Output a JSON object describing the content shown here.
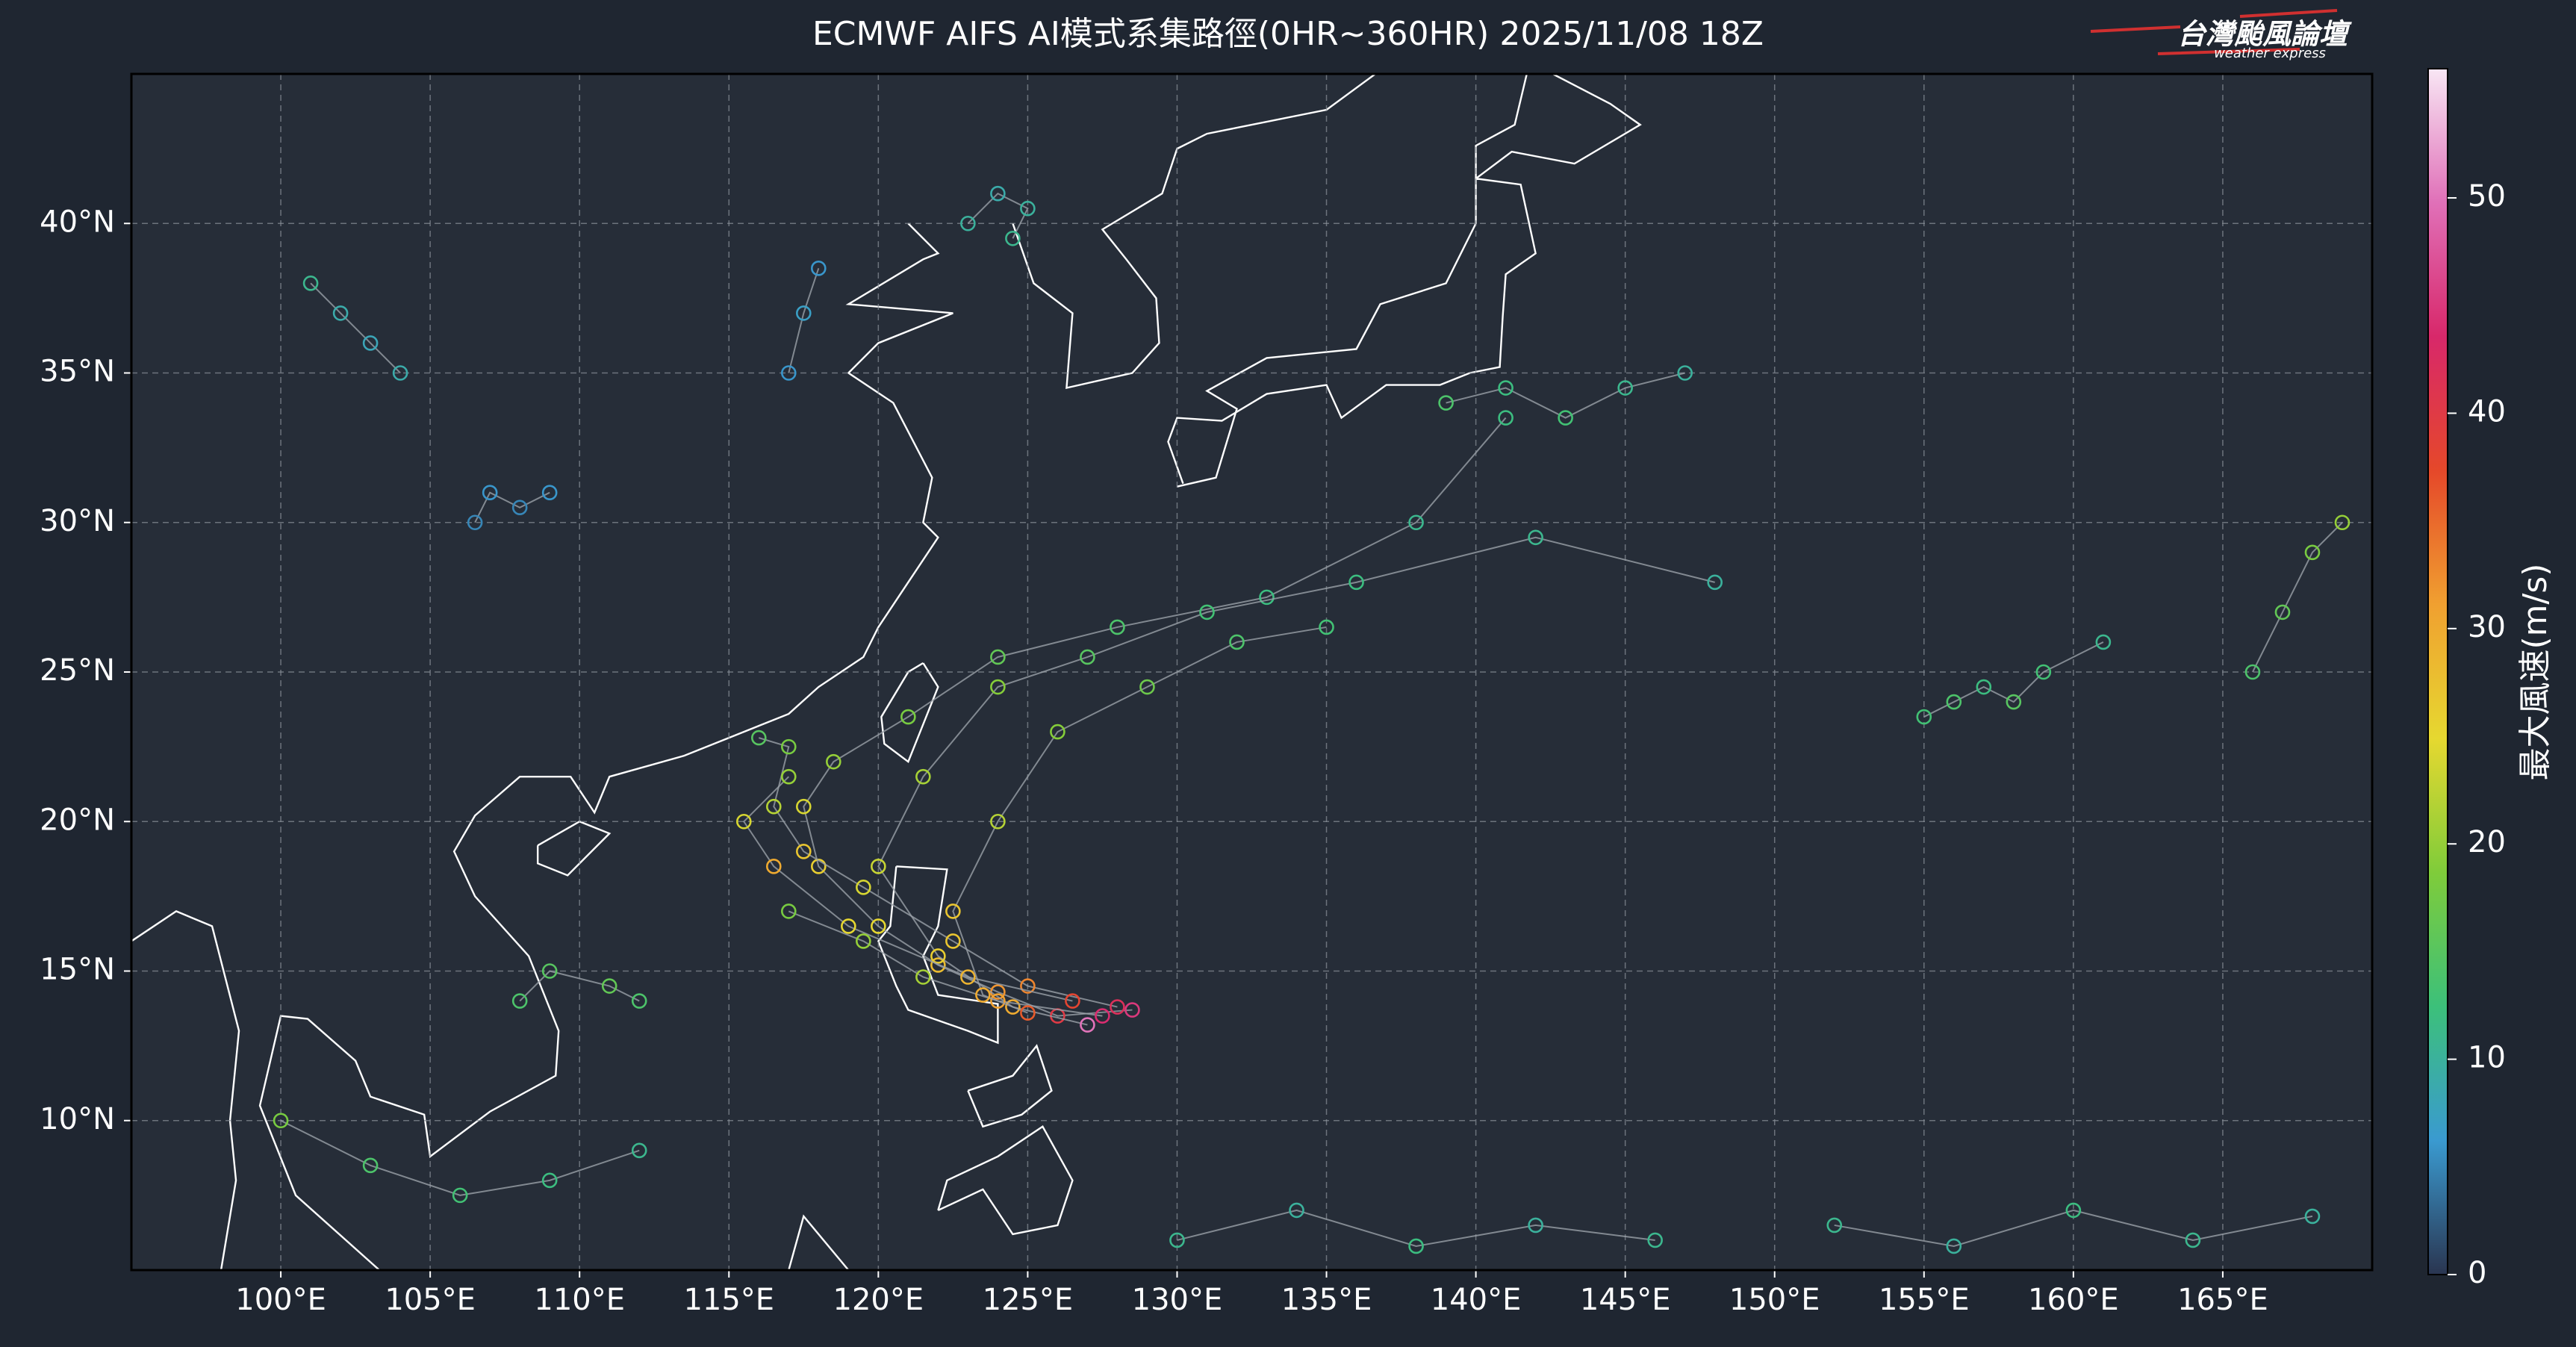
{
  "chart_data": {
    "type": "tracks",
    "title": "ECMWF AIFS AI模式系集路徑(0HR~360HR) 2025/11/08 18Z",
    "logo": {
      "name": "台灣颱風論壇",
      "subtitle": "weather express"
    },
    "colorbar_label": "最大風速(m/s)",
    "xlim": [
      95,
      170
    ],
    "ylim": [
      5,
      45
    ],
    "clim": [
      0,
      56
    ],
    "colors": [
      "#2a3550",
      "#3a9ad0",
      "#3cc07a",
      "#7fcc3a",
      "#e6d830",
      "#f0a030",
      "#e5482a",
      "#d8286a",
      "#e070b8",
      "#f8e6f4"
    ],
    "grid": true,
    "xticks": [
      {
        "value": 100,
        "label": "100°E"
      },
      {
        "value": 105,
        "label": "105°E"
      },
      {
        "value": 110,
        "label": "110°E"
      },
      {
        "value": 115,
        "label": "115°E"
      },
      {
        "value": 120,
        "label": "120°E"
      },
      {
        "value": 125,
        "label": "125°E"
      },
      {
        "value": 130,
        "label": "130°E"
      },
      {
        "value": 135,
        "label": "135°E"
      },
      {
        "value": 140,
        "label": "140°E"
      },
      {
        "value": 145,
        "label": "145°E"
      },
      {
        "value": 150,
        "label": "150°E"
      },
      {
        "value": 155,
        "label": "155°E"
      },
      {
        "value": 160,
        "label": "160°E"
      },
      {
        "value": 165,
        "label": "165°E"
      }
    ],
    "yticks": [
      {
        "value": 10,
        "label": "10°N"
      },
      {
        "value": 15,
        "label": "15°N"
      },
      {
        "value": 20,
        "label": "20°N"
      },
      {
        "value": 25,
        "label": "25°N"
      },
      {
        "value": 30,
        "label": "30°N"
      },
      {
        "value": 35,
        "label": "35°N"
      },
      {
        "value": 40,
        "label": "40°N"
      }
    ],
    "cticks": [
      0,
      10,
      20,
      30,
      40,
      50
    ],
    "tracks": [
      {
        "x": [
          128.5,
          126,
          124,
          122,
          120,
          118,
          117.5,
          118.5,
          121,
          124,
          128,
          133,
          138,
          141
        ],
        "y": [
          13.7,
          13.5,
          14.3,
          15.2,
          16.5,
          18.5,
          20.5,
          22,
          23.5,
          25.5,
          26.5,
          27.5,
          30,
          33.5
        ],
        "values": [
          45,
          40,
          32,
          28,
          25,
          26,
          24,
          20,
          18,
          16,
          14,
          12,
          11,
          12
        ]
      },
      {
        "x": [
          128,
          125,
          122.5,
          119.5,
          117.5,
          116.5,
          117,
          116
        ],
        "y": [
          13.8,
          14.5,
          16,
          17.8,
          19,
          20.5,
          22.5,
          22.8
        ],
        "values": [
          42,
          33,
          27,
          24,
          27,
          22,
          18,
          15
        ]
      },
      {
        "x": [
          127,
          124.5,
          122,
          120,
          121.5,
          124,
          127,
          131,
          136,
          142,
          148
        ],
        "y": [
          13.2,
          13.8,
          15.5,
          18.5,
          21.5,
          24.5,
          25.5,
          27,
          28,
          29.5,
          28
        ],
        "values": [
          50,
          30,
          26,
          23,
          21,
          19,
          15,
          13,
          12,
          11,
          10
        ]
      },
      {
        "x": [
          126.5,
          123,
          119,
          116.5,
          115.5,
          117
        ],
        "y": [
          14,
          14.8,
          16.5,
          18.5,
          20,
          21.5
        ],
        "values": [
          38,
          29,
          25,
          30,
          24,
          20
        ]
      },
      {
        "x": [
          127.5,
          124,
          121.5,
          119.5,
          117
        ],
        "y": [
          13.5,
          14,
          14.8,
          16,
          17
        ],
        "values": [
          44,
          31,
          21,
          20,
          18
        ]
      },
      {
        "x": [
          125,
          123.5,
          122.5,
          124,
          126,
          129,
          132,
          135
        ],
        "y": [
          13.6,
          14.2,
          17,
          20,
          23,
          24.5,
          26,
          26.5
        ],
        "values": [
          36,
          30,
          27,
          22,
          19,
          17,
          14,
          13
        ]
      },
      {
        "x": [
          139,
          141,
          143,
          145,
          147
        ],
        "y": [
          34,
          34.5,
          33.5,
          34.5,
          35
        ],
        "values": [
          14,
          12,
          13,
          11,
          10
        ]
      },
      {
        "x": [
          155,
          156,
          157,
          158,
          159,
          161
        ],
        "y": [
          23.5,
          24,
          24.5,
          24,
          25,
          26
        ],
        "values": [
          13,
          14,
          12,
          15,
          13,
          11
        ]
      },
      {
        "x": [
          166,
          167,
          168,
          169
        ],
        "y": [
          25,
          27,
          29,
          30
        ],
        "values": [
          14,
          16,
          18,
          20
        ]
      },
      {
        "x": [
          123,
          124,
          125,
          124.5
        ],
        "y": [
          40,
          41,
          40.5,
          39.5
        ],
        "values": [
          10,
          9,
          10,
          11
        ]
      },
      {
        "x": [
          101,
          102,
          103,
          104
        ],
        "y": [
          38,
          37,
          36,
          35
        ],
        "values": [
          11,
          9,
          8,
          9
        ]
      },
      {
        "x": [
          106.5,
          107,
          108,
          109
        ],
        "y": [
          30,
          31,
          30.5,
          31
        ],
        "values": [
          5,
          6,
          5,
          6
        ]
      },
      {
        "x": [
          117,
          117.5,
          118
        ],
        "y": [
          35,
          37,
          38.5
        ],
        "values": [
          6,
          7,
          6
        ]
      },
      {
        "x": [
          100,
          103,
          106,
          109,
          112
        ],
        "y": [
          10,
          8.5,
          7.5,
          8,
          9
        ],
        "values": [
          18,
          14,
          13,
          12,
          11
        ]
      },
      {
        "x": [
          130,
          134,
          138,
          142,
          146
        ],
        "y": [
          6,
          7,
          5.8,
          6.5,
          6
        ],
        "values": [
          11,
          10,
          12,
          10,
          11
        ]
      },
      {
        "x": [
          152,
          156,
          160,
          164,
          168
        ],
        "y": [
          6.5,
          5.8,
          7,
          6,
          6.8
        ],
        "values": [
          11,
          10,
          12,
          11,
          10
        ]
      },
      {
        "x": [
          108,
          109,
          111,
          112
        ],
        "y": [
          14,
          15,
          14.5,
          14
        ],
        "values": [
          14,
          15,
          16,
          14
        ]
      }
    ]
  }
}
